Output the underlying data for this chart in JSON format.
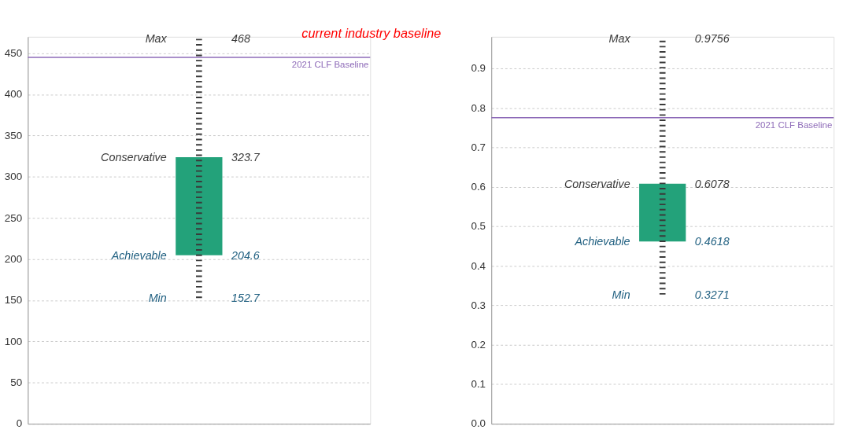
{
  "chart_data": [
    {
      "type": "bar",
      "categories": [
        null
      ],
      "values": [
        119.1
      ],
      "base": [
        204.6
      ],
      "errors": [
        [
          152.7,
          468
        ]
      ],
      "colors": [
        "#23a27a"
      ],
      "ylim": [
        0,
        470
      ],
      "yticks": [
        0,
        50,
        100,
        150,
        200,
        250,
        300,
        350,
        400,
        450
      ],
      "grid": "y",
      "ref_lines": [
        {
          "axis": "y",
          "value": 445,
          "label": "2021 CLF Baseline",
          "color": "#8e6bb8"
        }
      ],
      "annotations": [
        "Max",
        "468",
        "Conservative",
        "323.7",
        "Achievable",
        "204.6",
        "Min",
        "152.7",
        "current industry baseline"
      ]
    },
    {
      "type": "bar",
      "categories": [
        null
      ],
      "values": [
        0.146
      ],
      "base": [
        0.4618
      ],
      "errors": [
        [
          0.3271,
          0.9756
        ]
      ],
      "colors": [
        "#23a27a"
      ],
      "ylim": [
        0,
        0.98
      ],
      "yticks": [
        {
          "value": 0,
          "label": "0.0"
        },
        0.1,
        0.2,
        0.3,
        0.4,
        0.5,
        0.6,
        0.7,
        0.8,
        0.9
      ],
      "grid": "y",
      "ref_lines": [
        {
          "axis": "y",
          "value": 0.775,
          "label": "2021 CLF Baseline",
          "color": "#8e6bb8"
        }
      ],
      "annotations": [
        "Max",
        "0.9756",
        "Conservative",
        "0.6078",
        "Achievable",
        "0.4618",
        "Min",
        "0.3271"
      ]
    }
  ]
}
